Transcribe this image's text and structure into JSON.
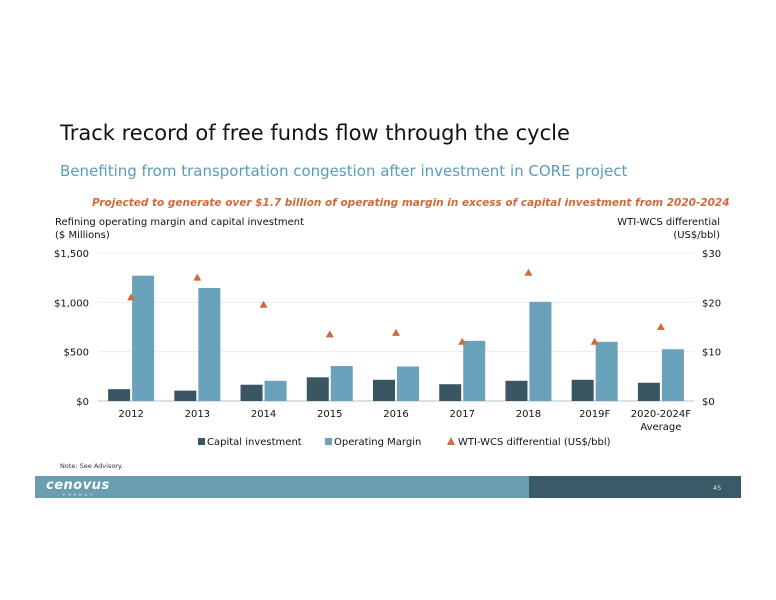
{
  "slide": {
    "title": "Track record of free funds flow through the cycle",
    "subtitle": "Benefiting from transportation congestion after investment in CORE project",
    "callout": "Projected to generate over $1.7 billion of operating margin in excess of capital investment from 2020-2024",
    "note": "Note: See Advisory.",
    "page_number": "45",
    "logo_text": "cenovus",
    "logo_subtext": "ENERGY"
  },
  "colors": {
    "capital": "#3a5663",
    "margin": "#6ba2bb",
    "wti": "#d0693b",
    "footer": "#6a9db0",
    "footer_dark": "#3a5a68"
  },
  "chart_data": {
    "type": "bar",
    "title": "",
    "ylabel_left_line1": "Refining operating margin and capital investment",
    "ylabel_left_line2": "($ Millions)",
    "ylabel_right_line1": "WTI-WCS differential",
    "ylabel_right_line2": "(US$/bbl)",
    "categories": [
      "2012",
      "2013",
      "2014",
      "2015",
      "2016",
      "2017",
      "2018",
      "2019F",
      "2020-2024F"
    ],
    "category_sublabels": [
      "",
      "",
      "",
      "",
      "",
      "",
      "",
      "",
      "Average"
    ],
    "ylim": [
      0,
      1500
    ],
    "y2lim": [
      0,
      30
    ],
    "yticks": [
      "$0",
      "$500",
      "$1,000",
      "$1,500"
    ],
    "y2ticks": [
      "$0",
      "$10",
      "$20",
      "$30"
    ],
    "series": [
      {
        "name": "Capital investment",
        "axis": "left",
        "kind": "bar",
        "values": [
          120,
          105,
          165,
          240,
          215,
          170,
          205,
          215,
          185
        ]
      },
      {
        "name": "Operating Margin",
        "axis": "left",
        "kind": "bar",
        "values": [
          1270,
          1145,
          205,
          355,
          350,
          610,
          1005,
          600,
          525
        ]
      },
      {
        "name": "WTI-WCS differential (US$/bbl)",
        "axis": "right",
        "kind": "marker",
        "values": [
          21,
          25,
          19.5,
          13.5,
          13.8,
          12,
          26,
          12,
          15
        ]
      }
    ],
    "legend_placement": "bottom",
    "grid": true
  }
}
